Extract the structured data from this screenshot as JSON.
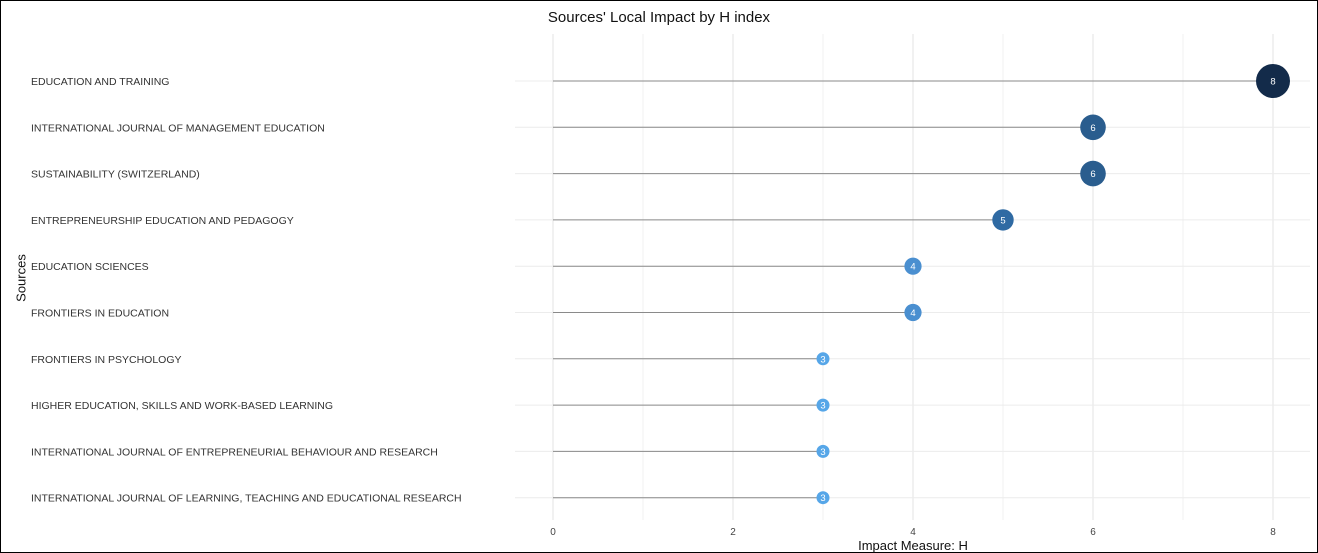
{
  "chart_data": {
    "type": "lollipop",
    "title": "Sources' Local Impact by H index",
    "xlabel": "Impact Measure: H",
    "ylabel": "Sources",
    "xlim": [
      0,
      8.2
    ],
    "xticks": [
      0,
      2,
      4,
      6,
      8
    ],
    "grid": true,
    "categories": [
      "EDUCATION AND TRAINING",
      "INTERNATIONAL JOURNAL OF MANAGEMENT EDUCATION",
      "SUSTAINABILITY (SWITZERLAND)",
      "ENTREPRENEURSHIP EDUCATION AND PEDAGOGY",
      "EDUCATION SCIENCES",
      "FRONTIERS IN EDUCATION",
      "FRONTIERS IN PSYCHOLOGY",
      "HIGHER EDUCATION, SKILLS AND WORK-BASED LEARNING",
      "INTERNATIONAL JOURNAL OF ENTREPRENEURIAL BEHAVIOUR AND RESEARCH",
      "INTERNATIONAL JOURNAL OF LEARNING, TEACHING AND EDUCATIONAL RESEARCH"
    ],
    "values": [
      8,
      6,
      6,
      5,
      4,
      4,
      3,
      3,
      3,
      3
    ],
    "colors": {
      "3": "#56a6e8",
      "4": "#4a8fd0",
      "5": "#2f6aa3",
      "6": "#2a5d8e",
      "8": "#132b4a"
    }
  }
}
